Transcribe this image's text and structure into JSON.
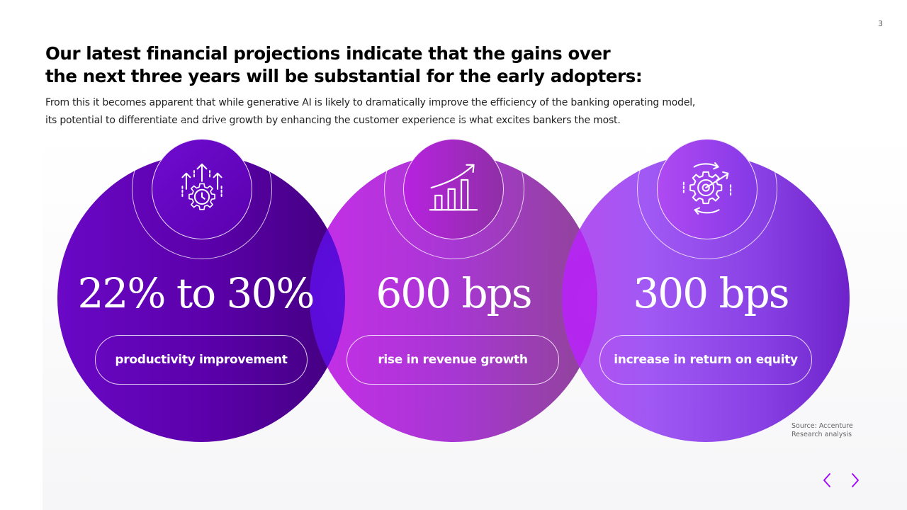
{
  "page_number": "3",
  "headline": {
    "line1": "Our latest financial projections indicate that the gains over",
    "line2": "the next three years will be substantial for the early adopters:"
  },
  "intro": {
    "line1": "From this it becomes apparent that while generative AI is likely to dramatically improve the efficiency of the banking operating model,",
    "line2": "its potential to differentiate and drive growth by enhancing the customer experience is what excites bankers the most."
  },
  "stats": [
    {
      "value": "22% to 30%",
      "label": "productivity improvement",
      "icon": "gear-arrows-up-icon",
      "color": "#5a00a8"
    },
    {
      "value": "600 bps",
      "label": "rise in revenue growth",
      "icon": "bar-chart-trend-icon",
      "color": "#a128d0"
    },
    {
      "value": "300 bps",
      "label": "increase in return on equity",
      "icon": "gear-target-icon",
      "color": "#9a4cf3"
    }
  ],
  "source": {
    "line1": "Source: Accenture",
    "line2": "Research analysis"
  },
  "nav": {
    "prev_icon": "chevron-left-icon",
    "next_icon": "chevron-right-icon",
    "accent": "#a100ff"
  }
}
